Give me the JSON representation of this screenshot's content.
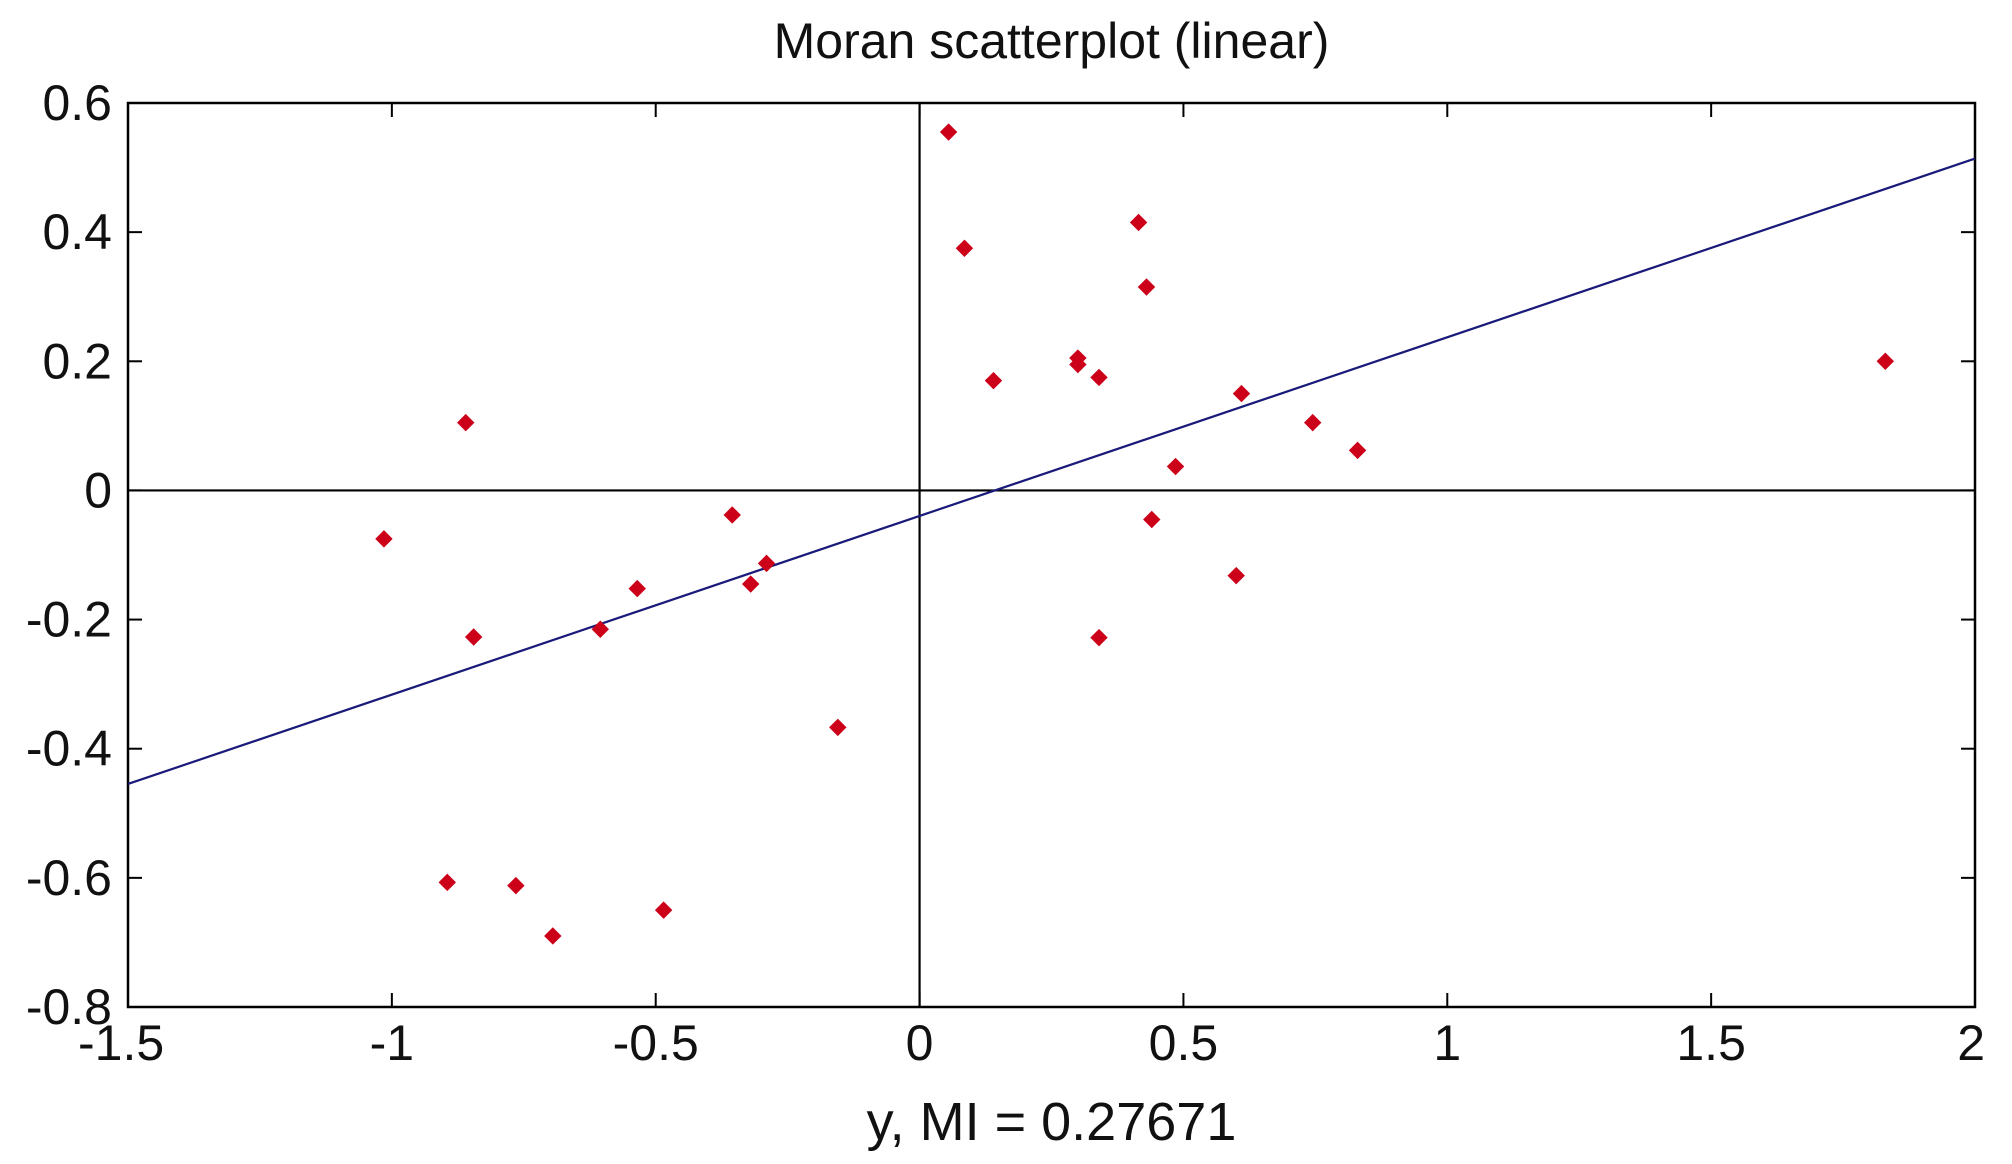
{
  "chart_data": {
    "type": "scatter",
    "title": "Moran scatterplot (linear)",
    "xlabel": "y,  MI = 0.27671",
    "ylabel": "",
    "xlim": [
      -1.5,
      2
    ],
    "ylim": [
      -0.8,
      0.6
    ],
    "x_ticks": [
      -1.5,
      -1,
      -0.5,
      0,
      0.5,
      1,
      1.5,
      2
    ],
    "x_tick_labels": [
      "-1.5",
      "-1",
      "-0.5",
      "0",
      "0.5",
      "1",
      "1.5",
      "2"
    ],
    "y_ticks": [
      0.6,
      0.4,
      0.2,
      0,
      -0.2,
      -0.4,
      -0.6,
      -0.8
    ],
    "y_tick_labels": [
      "0.6",
      "0.4",
      "0.2",
      "0",
      "-0.2",
      "-0.4",
      "-0.6",
      "-0.8"
    ],
    "grid": false,
    "reference_lines": {
      "x": 0,
      "y": 0
    },
    "point_color": "#cc0018",
    "line_color": "#1a1a7a",
    "fit_line": {
      "slope": 0.27671,
      "intercept": -0.0395
    },
    "points": [
      {
        "x": 0.055,
        "y": 0.555
      },
      {
        "x": 0.085,
        "y": 0.375
      },
      {
        "x": 0.415,
        "y": 0.415
      },
      {
        "x": 0.43,
        "y": 0.315
      },
      {
        "x": 0.3,
        "y": 0.205
      },
      {
        "x": 0.3,
        "y": 0.195
      },
      {
        "x": 0.14,
        "y": 0.17
      },
      {
        "x": 0.34,
        "y": 0.175
      },
      {
        "x": 0.61,
        "y": 0.15
      },
      {
        "x": 0.745,
        "y": 0.105
      },
      {
        "x": 0.83,
        "y": 0.062
      },
      {
        "x": 0.485,
        "y": 0.037
      },
      {
        "x": 1.83,
        "y": 0.2
      },
      {
        "x": 0.44,
        "y": -0.045
      },
      {
        "x": 0.6,
        "y": -0.132
      },
      {
        "x": 0.34,
        "y": -0.228
      },
      {
        "x": -0.86,
        "y": 0.105
      },
      {
        "x": -1.015,
        "y": -0.075
      },
      {
        "x": -0.355,
        "y": -0.038
      },
      {
        "x": -0.29,
        "y": -0.113
      },
      {
        "x": -0.32,
        "y": -0.145
      },
      {
        "x": -0.535,
        "y": -0.152
      },
      {
        "x": -0.605,
        "y": -0.215
      },
      {
        "x": -0.845,
        "y": -0.227
      },
      {
        "x": -0.155,
        "y": -0.367
      },
      {
        "x": -0.895,
        "y": -0.607
      },
      {
        "x": -0.765,
        "y": -0.612
      },
      {
        "x": -0.695,
        "y": -0.69
      },
      {
        "x": -0.485,
        "y": -0.65
      }
    ]
  }
}
